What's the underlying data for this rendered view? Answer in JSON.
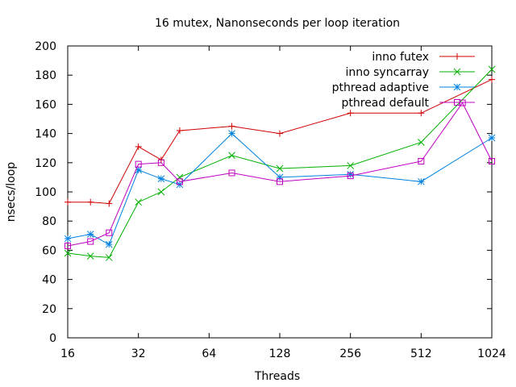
{
  "chart_data": {
    "type": "line",
    "title": "16 mutex, Nanonseconds per loop iteration",
    "xlabel": "Threads",
    "ylabel": "nsecs/loop",
    "xscale": "log2",
    "xlim": [
      16,
      1024
    ],
    "ylim": [
      0,
      200
    ],
    "xticks": [
      16,
      32,
      64,
      128,
      256,
      512,
      1024
    ],
    "xtick_labels": [
      "16",
      "32",
      "64",
      "128",
      "256",
      "512",
      "1024"
    ],
    "yticks": [
      0,
      20,
      40,
      60,
      80,
      100,
      120,
      140,
      160,
      180,
      200
    ],
    "ytick_labels": [
      "0",
      "20",
      "40",
      "60",
      "80",
      "100",
      "120",
      "140",
      "160",
      "180",
      "200"
    ],
    "grid": false,
    "legend_position": "top-right",
    "series": [
      {
        "name": "inno futex",
        "color": "#d00000",
        "marker": "plus",
        "x": [
          16,
          20,
          24,
          32,
          40,
          48,
          80,
          128,
          256,
          512,
          1024
        ],
        "y": [
          93,
          93,
          92,
          131,
          122,
          142,
          145,
          140,
          154,
          154,
          177
        ]
      },
      {
        "name": "inno syncarray",
        "color": "#00b000",
        "marker": "cross",
        "x": [
          16,
          20,
          24,
          32,
          40,
          48,
          80,
          128,
          256,
          512,
          1024
        ],
        "y": [
          58,
          56,
          55,
          93,
          100,
          110,
          125,
          116,
          118,
          134,
          184
        ]
      },
      {
        "name": "pthread adaptive",
        "color": "#0080e0",
        "marker": "star",
        "x": [
          16,
          20,
          24,
          32,
          40,
          48,
          80,
          128,
          256,
          512,
          1024
        ],
        "y": [
          68,
          71,
          64,
          115,
          109,
          105,
          140,
          110,
          112,
          107,
          137
        ]
      },
      {
        "name": "pthread default",
        "color": "#c000c0",
        "marker": "box",
        "x": [
          16,
          20,
          24,
          32,
          40,
          48,
          80,
          128,
          256,
          512,
          768,
          1024
        ],
        "y": [
          63,
          66,
          72,
          119,
          120,
          107,
          113,
          107,
          111,
          121,
          161,
          121
        ]
      }
    ]
  }
}
